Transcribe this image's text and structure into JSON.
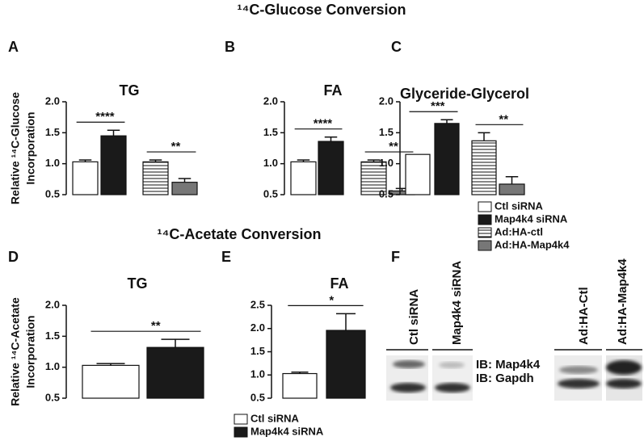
{
  "headings": [
    "¹⁴C-Glucose Conversion",
    "¹⁴C-Acetate Conversion"
  ],
  "chart_data": [
    {
      "type": "bar",
      "panel": "A",
      "title": "TG",
      "ylabel": [
        "Relative ¹⁴C-Glucose",
        "Incorporation"
      ],
      "categories": [
        null,
        null,
        null,
        null
      ],
      "ylim": [
        0.5,
        2.0
      ],
      "yticks": [
        0.5,
        {
          "value": 1,
          "label": "1.0"
        },
        1.5,
        {
          "value": 2,
          "label": "2.0"
        }
      ],
      "series": [
        {
          "color": "#ffffff",
          "values": [
            1.03,
            null,
            null,
            null
          ],
          "errors": [
            0.03,
            null,
            null,
            null
          ]
        },
        {
          "color": "#1a1a1a",
          "values": [
            null,
            1.45,
            null,
            null
          ],
          "errors": [
            null,
            0.09,
            null,
            null
          ]
        },
        {
          "color": "#ffffff",
          "hatch": "horizontal",
          "values": [
            null,
            null,
            1.03,
            null
          ],
          "errors": [
            null,
            null,
            0.03,
            null
          ]
        },
        {
          "color": "#777777",
          "values": [
            null,
            null,
            null,
            0.7
          ],
          "errors": [
            null,
            null,
            null,
            0.06
          ]
        }
      ],
      "annotations": [
        {
          "text": "****",
          "bars": [
            0,
            1
          ]
        },
        {
          "text": "**",
          "bars": [
            2,
            3
          ]
        }
      ]
    },
    {
      "type": "bar",
      "panel": "B",
      "title": "FA",
      "categories": [
        null,
        null,
        null,
        null
      ],
      "ylim": [
        0.5,
        2.0
      ],
      "yticks": [
        0.5,
        {
          "value": 1,
          "label": "1.0"
        },
        1.5,
        {
          "value": 2,
          "label": "2.0"
        }
      ],
      "series": [
        {
          "color": "#ffffff",
          "values": [
            1.03,
            null,
            null,
            null
          ],
          "errors": [
            0.03,
            null,
            null,
            null
          ]
        },
        {
          "color": "#1a1a1a",
          "values": [
            null,
            1.36,
            null,
            null
          ],
          "errors": [
            null,
            0.07,
            null,
            null
          ]
        },
        {
          "color": "#ffffff",
          "hatch": "horizontal",
          "values": [
            null,
            null,
            1.03,
            null
          ],
          "errors": [
            null,
            null,
            0.03,
            null
          ]
        },
        {
          "color": "#777777",
          "values": [
            null,
            null,
            null,
            0.56
          ],
          "errors": [
            null,
            null,
            null,
            0.04
          ]
        }
      ],
      "annotations": [
        {
          "text": "****",
          "bars": [
            0,
            1
          ]
        },
        {
          "text": "**",
          "bars": [
            2,
            3
          ]
        }
      ]
    },
    {
      "type": "bar",
      "panel": "C",
      "title": "Glyceride-Glycerol",
      "categories": [
        null,
        null,
        null,
        null
      ],
      "ylim": [
        0.5,
        2.0
      ],
      "yticks": [
        0.5,
        {
          "value": 1,
          "label": "1.0"
        },
        1.5,
        {
          "value": 2,
          "label": "2.0"
        }
      ],
      "series": [
        {
          "name": "Ctl siRNA",
          "color": "#ffffff",
          "values": [
            1.15,
            null,
            null,
            null
          ],
          "errors": [
            null,
            null,
            null,
            null
          ]
        },
        {
          "name": "Map4k4 siRNA",
          "color": "#1a1a1a",
          "values": [
            null,
            1.65,
            null,
            null
          ],
          "errors": [
            null,
            0.06,
            null,
            null
          ]
        },
        {
          "name": "Ad:HA-ctl",
          "color": "#ffffff",
          "hatch": "horizontal",
          "values": [
            null,
            null,
            1.37,
            null
          ],
          "errors": [
            null,
            null,
            0.13,
            null
          ]
        },
        {
          "name": "Ad:HA-Map4k4",
          "color": "#777777",
          "values": [
            null,
            null,
            null,
            0.67
          ],
          "errors": [
            null,
            null,
            null,
            0.12
          ]
        }
      ],
      "annotations": [
        {
          "text": "***",
          "bars": [
            0,
            1
          ]
        },
        {
          "text": "**",
          "bars": [
            2,
            3
          ]
        }
      ]
    },
    {
      "type": "bar",
      "panel": "D",
      "title": "TG",
      "ylabel": [
        "Relative ¹⁴C-Acetate",
        "Incorporation"
      ],
      "categories": [
        null,
        null
      ],
      "ylim": [
        0.5,
        2.0
      ],
      "yticks": [
        0.5,
        {
          "value": 1,
          "label": "1.0"
        },
        1.5,
        {
          "value": 2,
          "label": "2.0"
        }
      ],
      "series": [
        {
          "color": "#ffffff",
          "values": [
            1.03,
            null
          ],
          "errors": [
            0.03,
            null
          ]
        },
        {
          "color": "#1a1a1a",
          "values": [
            null,
            1.32
          ],
          "errors": [
            null,
            0.13
          ]
        }
      ],
      "annotations": [
        {
          "text": "**",
          "bars": [
            0,
            1
          ]
        }
      ]
    },
    {
      "type": "bar",
      "panel": "E",
      "title": "FA",
      "categories": [
        null,
        null
      ],
      "ylim": [
        0.5,
        2.5
      ],
      "yticks": [
        0.5,
        {
          "value": 1,
          "label": "1.0"
        },
        1.5,
        {
          "value": 2,
          "label": "2.0"
        },
        2.5
      ],
      "series": [
        {
          "name": "Ctl siRNA",
          "color": "#ffffff",
          "values": [
            1.03,
            null
          ],
          "errors": [
            0.03,
            null
          ]
        },
        {
          "name": "Map4k4 siRNA",
          "color": "#1a1a1a",
          "values": [
            null,
            1.96
          ],
          "errors": [
            null,
            0.36
          ]
        }
      ],
      "annotations": [
        {
          "text": "*",
          "bars": [
            0,
            1
          ]
        }
      ]
    }
  ],
  "blot": {
    "panel": "F",
    "lanes": [
      "Ctl siRNA",
      "Map4k4 siRNA",
      "Ad:HA-Ctl",
      "Ad:HA-Map4k4"
    ],
    "rows": [
      "IB: Map4k4",
      "IB: Gapdh"
    ]
  }
}
